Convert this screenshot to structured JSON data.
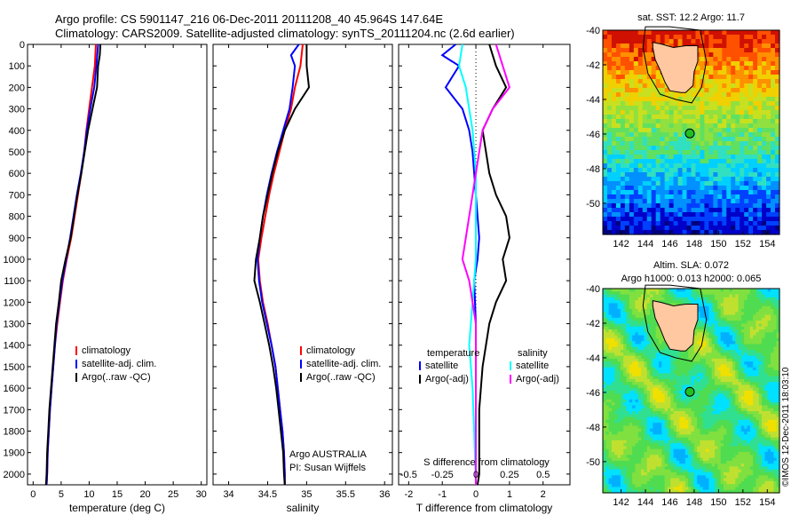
{
  "header": {
    "line1": "Argo profile: CS 5901147_216 06-Dec-2011 20111208_40 45.964S 147.64E",
    "line2": "Climatology: CARS2009. Satellite-adjusted climatology: synTS_20111204.nc (2.6d earlier)"
  },
  "credit": "©IMOS 12-Dec-2011 18:03:10",
  "colors": {
    "climatology": "#ff0000",
    "satellite": "#0000ff",
    "argo": "#000000",
    "salinity_satellite": "#00ffff",
    "salinity_argo": "#ff00ff",
    "land": "#ffc8a0"
  },
  "chart_data": [
    {
      "type": "line",
      "id": "temperature",
      "xlabel": "temperature (deg C)",
      "ylabel": "",
      "xlim": [
        -1,
        31
      ],
      "ylim": [
        2050,
        0
      ],
      "xticks": [
        0,
        5,
        10,
        15,
        20,
        25,
        30
      ],
      "yticks": [
        0,
        100,
        200,
        300,
        400,
        500,
        600,
        700,
        800,
        900,
        1000,
        1100,
        1200,
        1300,
        1400,
        1500,
        1600,
        1700,
        1800,
        1900,
        2000
      ],
      "legend": {
        "position": "center-left",
        "entries": [
          "climatology",
          "satellite-adj. clim.",
          "Argo(..raw -QC)"
        ]
      },
      "series": [
        {
          "name": "climatology",
          "color": "#ff0000",
          "points": [
            [
              11.2,
              0
            ],
            [
              11.0,
              100
            ],
            [
              10.5,
              200
            ],
            [
              10.0,
              300
            ],
            [
              9.5,
              400
            ],
            [
              9.1,
              500
            ],
            [
              8.6,
              600
            ],
            [
              8.0,
              700
            ],
            [
              7.4,
              800
            ],
            [
              6.8,
              900
            ],
            [
              6.0,
              1000
            ],
            [
              5.3,
              1100
            ],
            [
              4.8,
              1200
            ],
            [
              4.3,
              1300
            ],
            [
              3.9,
              1400
            ],
            [
              3.6,
              1500
            ],
            [
              3.3,
              1600
            ],
            [
              3.0,
              1700
            ],
            [
              2.8,
              1800
            ],
            [
              2.6,
              1900
            ],
            [
              2.5,
              2000
            ],
            [
              2.4,
              2050
            ]
          ]
        },
        {
          "name": "satellite-adj. clim.",
          "color": "#0000ff",
          "points": [
            [
              11.6,
              0
            ],
            [
              11.3,
              100
            ],
            [
              10.9,
              200
            ],
            [
              10.2,
              300
            ],
            [
              9.6,
              400
            ],
            [
              9.1,
              500
            ],
            [
              8.5,
              600
            ],
            [
              7.8,
              700
            ],
            [
              7.2,
              800
            ],
            [
              6.6,
              900
            ],
            [
              5.9,
              1000
            ],
            [
              5.2,
              1100
            ],
            [
              4.7,
              1200
            ],
            [
              4.2,
              1300
            ],
            [
              3.9,
              1400
            ],
            [
              3.6,
              1500
            ],
            [
              3.3,
              1600
            ],
            [
              3.0,
              1700
            ],
            [
              2.8,
              1800
            ],
            [
              2.6,
              1900
            ],
            [
              2.5,
              2000
            ],
            [
              2.4,
              2050
            ]
          ]
        },
        {
          "name": "Argo(..raw -QC)",
          "color": "#000000",
          "points": [
            [
              12.0,
              0
            ],
            [
              11.9,
              50
            ],
            [
              11.6,
              100
            ],
            [
              11.4,
              200
            ],
            [
              10.6,
              300
            ],
            [
              9.8,
              400
            ],
            [
              9.2,
              500
            ],
            [
              8.6,
              600
            ],
            [
              7.9,
              700
            ],
            [
              7.3,
              800
            ],
            [
              6.7,
              900
            ],
            [
              5.8,
              1000
            ],
            [
              5.0,
              1100
            ],
            [
              4.6,
              1200
            ],
            [
              4.1,
              1300
            ],
            [
              3.8,
              1400
            ],
            [
              3.5,
              1500
            ],
            [
              3.2,
              1600
            ],
            [
              2.9,
              1700
            ],
            [
              2.7,
              1800
            ],
            [
              2.5,
              1900
            ],
            [
              2.4,
              2000
            ],
            [
              2.3,
              2050
            ]
          ]
        }
      ]
    },
    {
      "type": "line",
      "id": "salinity",
      "xlabel": "salinity",
      "ylabel": "",
      "xlim": [
        33.8,
        36.1
      ],
      "ylim": [
        2050,
        0
      ],
      "xticks": [
        34,
        34.5,
        35,
        35.5,
        36
      ],
      "xtick_labels": [
        "34",
        "34.5",
        "35",
        "35.5",
        "36"
      ],
      "legend": {
        "position": "center-right",
        "entries": [
          "climatology",
          "satellite-adj. clim.",
          "Argo(..raw -QC)"
        ]
      },
      "annotation": [
        "Argo AUSTRALIA",
        "PI: Susan Wijffels"
      ],
      "series": [
        {
          "name": "climatology",
          "color": "#ff0000",
          "points": [
            [
              34.95,
              0
            ],
            [
              34.92,
              100
            ],
            [
              34.85,
              200
            ],
            [
              34.8,
              300
            ],
            [
              34.72,
              400
            ],
            [
              34.65,
              500
            ],
            [
              34.58,
              600
            ],
            [
              34.52,
              700
            ],
            [
              34.47,
              800
            ],
            [
              34.42,
              900
            ],
            [
              34.38,
              1000
            ],
            [
              34.4,
              1100
            ],
            [
              34.44,
              1200
            ],
            [
              34.5,
              1300
            ],
            [
              34.55,
              1400
            ],
            [
              34.6,
              1500
            ],
            [
              34.63,
              1600
            ],
            [
              34.66,
              1700
            ],
            [
              34.69,
              1800
            ],
            [
              34.71,
              1900
            ],
            [
              34.72,
              2000
            ],
            [
              34.72,
              2050
            ]
          ]
        },
        {
          "name": "satellite-adj. clim.",
          "color": "#0000ff",
          "points": [
            [
              34.9,
              0
            ],
            [
              34.8,
              50
            ],
            [
              34.85,
              100
            ],
            [
              34.82,
              200
            ],
            [
              34.78,
              300
            ],
            [
              34.7,
              400
            ],
            [
              34.62,
              500
            ],
            [
              34.55,
              600
            ],
            [
              34.49,
              700
            ],
            [
              34.44,
              800
            ],
            [
              34.4,
              900
            ],
            [
              34.37,
              1000
            ],
            [
              34.39,
              1100
            ],
            [
              34.43,
              1200
            ],
            [
              34.49,
              1300
            ],
            [
              34.55,
              1400
            ],
            [
              34.6,
              1500
            ],
            [
              34.63,
              1600
            ],
            [
              34.66,
              1700
            ],
            [
              34.69,
              1800
            ],
            [
              34.71,
              1900
            ],
            [
              34.72,
              2000
            ],
            [
              34.72,
              2050
            ]
          ]
        },
        {
          "name": "Argo(..raw -QC)",
          "color": "#000000",
          "points": [
            [
              35.0,
              0
            ],
            [
              35.0,
              100
            ],
            [
              35.03,
              200
            ],
            [
              34.85,
              300
            ],
            [
              34.72,
              400
            ],
            [
              34.63,
              500
            ],
            [
              34.56,
              600
            ],
            [
              34.5,
              700
            ],
            [
              34.44,
              800
            ],
            [
              34.4,
              900
            ],
            [
              34.35,
              1000
            ],
            [
              34.33,
              1100
            ],
            [
              34.4,
              1200
            ],
            [
              34.46,
              1300
            ],
            [
              34.52,
              1400
            ],
            [
              34.57,
              1500
            ],
            [
              34.61,
              1600
            ],
            [
              34.64,
              1700
            ],
            [
              34.67,
              1800
            ],
            [
              34.7,
              1900
            ],
            [
              34.71,
              2000
            ],
            [
              34.72,
              2050
            ]
          ]
        }
      ]
    },
    {
      "type": "line",
      "id": "difference",
      "xlabel": "T difference from climatology",
      "xlabel_top": "S difference from climatology",
      "ylabel": "",
      "xlim": [
        -2.3,
        2.8
      ],
      "ylim": [
        2050,
        0
      ],
      "xticks": [
        -2,
        -1,
        0,
        1,
        2
      ],
      "xticks_salinity_labels": [
        "-0.5",
        "-0.25",
        "0",
        "0.25",
        "0.5"
      ],
      "xticks_salinity_positions": [
        -2,
        -1,
        0,
        1,
        2
      ],
      "legend": {
        "position": "center",
        "temperature_header": "temperature",
        "salinity_header": "salinity",
        "entries": [
          "satellite",
          "Argo(-adj)",
          "satellite",
          "Argo(-adj)"
        ]
      },
      "series": [
        {
          "name": "satellite",
          "group": "temperature",
          "color": "#0000ff",
          "points": [
            [
              -0.6,
              0
            ],
            [
              -1.0,
              50
            ],
            [
              -0.5,
              100
            ],
            [
              -0.9,
              200
            ],
            [
              -0.4,
              300
            ],
            [
              -0.2,
              400
            ],
            [
              -0.1,
              500
            ],
            [
              0.0,
              700
            ],
            [
              0.1,
              900
            ],
            [
              0.05,
              1000
            ],
            [
              -0.05,
              1100
            ],
            [
              0.0,
              1300
            ],
            [
              0.0,
              1500
            ],
            [
              0.0,
              1700
            ],
            [
              0.0,
              1900
            ],
            [
              0.0,
              2050
            ]
          ]
        },
        {
          "name": "Argo(-adj)",
          "group": "temperature",
          "color": "#000000",
          "points": [
            [
              0.4,
              0
            ],
            [
              0.6,
              100
            ],
            [
              0.9,
              200
            ],
            [
              0.5,
              300
            ],
            [
              0.2,
              400
            ],
            [
              0.3,
              500
            ],
            [
              0.4,
              600
            ],
            [
              0.6,
              700
            ],
            [
              0.9,
              800
            ],
            [
              1.0,
              900
            ],
            [
              0.8,
              1000
            ],
            [
              0.9,
              1100
            ],
            [
              0.6,
              1200
            ],
            [
              0.4,
              1300
            ],
            [
              0.3,
              1400
            ],
            [
              0.2,
              1500
            ],
            [
              0.15,
              1600
            ],
            [
              0.1,
              1700
            ],
            [
              0.1,
              1800
            ],
            [
              0.1,
              1900
            ],
            [
              0.1,
              2000
            ],
            [
              0.05,
              2050
            ]
          ]
        },
        {
          "name": "satellite",
          "group": "salinity",
          "color": "#00ffff",
          "points": [
            [
              -0.4,
              0
            ],
            [
              -0.5,
              100
            ],
            [
              -0.3,
              200
            ],
            [
              -0.2,
              300
            ],
            [
              -0.1,
              400
            ],
            [
              0.0,
              600
            ],
            [
              0.0,
              800
            ],
            [
              0.0,
              1000
            ],
            [
              -0.1,
              1200
            ],
            [
              -0.2,
              1400
            ],
            [
              -0.1,
              1600
            ],
            [
              -0.05,
              1800
            ],
            [
              0.0,
              2050
            ]
          ]
        },
        {
          "name": "Argo(-adj)",
          "group": "salinity",
          "color": "#ff00ff",
          "points": [
            [
              0.6,
              0
            ],
            [
              0.8,
              100
            ],
            [
              1.0,
              200
            ],
            [
              0.5,
              300
            ],
            [
              0.2,
              400
            ],
            [
              0.1,
              500
            ],
            [
              0.0,
              600
            ],
            [
              -0.1,
              700
            ],
            [
              -0.2,
              800
            ],
            [
              -0.3,
              900
            ],
            [
              -0.4,
              1000
            ],
            [
              -0.2,
              1100
            ],
            [
              -0.1,
              1200
            ],
            [
              0.0,
              1300
            ],
            [
              0.0,
              1400
            ],
            [
              0.0,
              1600
            ],
            [
              0.0,
              1800
            ],
            [
              0.0,
              2050
            ]
          ]
        }
      ]
    },
    {
      "type": "heatmap",
      "id": "sst-map",
      "title": "sat. SST: 12.2 Argo: 11.7",
      "xlim": [
        140.5,
        155
      ],
      "ylim": [
        -51.8,
        -40
      ],
      "xticks": [
        142,
        144,
        146,
        148,
        150,
        152,
        154
      ],
      "yticks": [
        -40,
        -42,
        -44,
        -46,
        -48,
        -50
      ],
      "marker": {
        "lon": 147.64,
        "lat": -45.964
      },
      "palette": [
        "#00007f",
        "#0000c8",
        "#0040ff",
        "#0090ff",
        "#00d0ff",
        "#30e0c0",
        "#60e060",
        "#90e040",
        "#c8e020",
        "#f0d000",
        "#ff9000",
        "#ff5000",
        "#d01000"
      ]
    },
    {
      "type": "heatmap",
      "id": "sla-map",
      "title_line1": "Altim. SLA: 0.072",
      "title_line2": "Argo h1000: 0.013 h2000: 0.065",
      "xlim": [
        140.5,
        155
      ],
      "ylim": [
        -51.8,
        -40
      ],
      "xticks": [
        142,
        144,
        146,
        148,
        150,
        152,
        154
      ],
      "yticks": [
        -40,
        -42,
        -44,
        -46,
        -48,
        -50
      ],
      "marker": {
        "lon": 147.64,
        "lat": -45.964
      },
      "palette": [
        "#0080ff",
        "#00b0ff",
        "#00e0ff",
        "#30e090",
        "#50dc50",
        "#80e040",
        "#c0e030",
        "#f0e000",
        "#ffa000",
        "#ff6000"
      ]
    }
  ]
}
